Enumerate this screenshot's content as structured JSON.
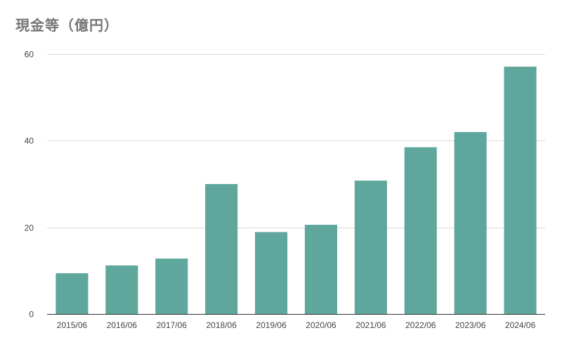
{
  "chart_data": {
    "type": "bar",
    "title": "現金等（億円）",
    "xlabel": "",
    "ylabel": "",
    "categories": [
      "2015/06",
      "2016/06",
      "2017/06",
      "2018/06",
      "2019/06",
      "2020/06",
      "2021/06",
      "2022/06",
      "2023/06",
      "2024/06"
    ],
    "series": [
      {
        "values": [
          9.4,
          11.2,
          12.8,
          30.0,
          18.9,
          20.6,
          30.8,
          38.5,
          42.0,
          57.1
        ],
        "color": "#5fa79c"
      }
    ],
    "ylim": [
      0,
      60
    ],
    "yticks": [
      0,
      20,
      40,
      60
    ],
    "grid": true,
    "legend": "none"
  }
}
